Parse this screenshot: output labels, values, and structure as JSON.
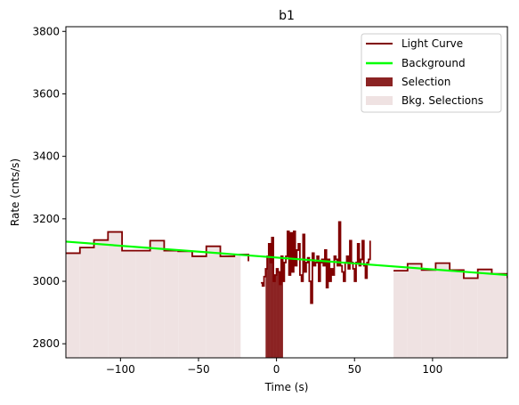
{
  "chart_data": {
    "type": "line",
    "title": "b1",
    "xlabel": "Time (s)",
    "ylabel": "Rate (cnts/s)",
    "xlim": [
      -135,
      148
    ],
    "ylim": [
      2755,
      3815
    ],
    "x_ticks": [
      -100,
      -50,
      0,
      50,
      100
    ],
    "y_ticks": [
      2800,
      3000,
      3200,
      3400,
      3600,
      3800
    ],
    "legend_position": "top-right",
    "colors": {
      "light_curve": "#800000",
      "background": "#00ff00",
      "selection": "#8b2323",
      "bkg_selection": "#efe2e2"
    },
    "series": [
      {
        "name": "Light Curve",
        "kind": "step",
        "segments": [
          {
            "edges": [
              -135,
              -126,
              -117,
              -108,
              -99,
              -90,
              -81,
              -72,
              -63,
              -54,
              -45,
              -36,
              -27,
              -18
            ],
            "values": [
              3090,
              3108,
              3132,
              3158,
              3098,
              3098,
              3130,
              3098,
              3096,
              3080,
              3112,
              3080,
              3086,
              3064
            ]
          },
          {
            "edges": [
              -10,
              -9,
              -8,
              -7,
              -6,
              -5,
              -4,
              -3,
              -2,
              -1,
              0,
              1,
              2,
              3,
              4,
              5,
              6,
              7,
              8,
              9,
              10,
              11,
              12,
              13,
              14,
              15,
              16,
              17,
              18,
              19,
              20,
              21,
              22,
              23,
              24,
              25,
              26,
              27,
              28,
              29,
              30,
              31,
              32,
              33,
              34,
              35,
              36,
              37,
              38,
              39,
              40,
              41,
              42,
              43,
              44,
              45,
              46,
              47,
              48,
              49,
              50,
              51,
              52,
              53,
              54,
              55,
              56,
              57,
              58,
              59,
              60
            ],
            "values": [
              2995,
              2985,
              3015,
              3040,
              3080,
              3120,
              3060,
              3140,
              3000,
              3020,
              3040,
              3030,
              2990,
              3080,
              3000,
              3060,
              3080,
              3160,
              3020,
              3155,
              3030,
              3160,
              3050,
              3100,
              3120,
              3020,
              3000,
              3150,
              3030,
              3060,
              3075,
              3000,
              2930,
              3090,
              3050,
              3060,
              3080,
              3000,
              3060,
              3070,
              3050,
              3100,
              2980,
              3070,
              3000,
              3040,
              3020,
              3080,
              3070,
              3050,
              3190,
              3050,
              3030,
              3000,
              3060,
              3080,
              3040,
              3130,
              3060,
              3040,
              3000,
              3060,
              3120,
              3050,
              3070,
              3130,
              3050,
              3010,
              3060,
              3070,
              3130
            ]
          },
          {
            "edges": [
              75,
              84,
              93,
              102,
              111,
              120,
              129,
              138,
              148
            ],
            "values": [
              3034,
              3056,
              3036,
              3058,
              3036,
              3010,
              3038,
              3024,
              3010
            ]
          }
        ]
      },
      {
        "name": "Background",
        "kind": "line",
        "x": [
          -135,
          148
        ],
        "y": [
          3127,
          3020
        ]
      },
      {
        "name": "Selection",
        "kind": "band",
        "x_range": [
          -7,
          4
        ]
      },
      {
        "name": "Bkg. Selections",
        "kind": "bands",
        "x_ranges": [
          [
            -135,
            -23
          ],
          [
            75,
            148
          ]
        ]
      }
    ]
  }
}
